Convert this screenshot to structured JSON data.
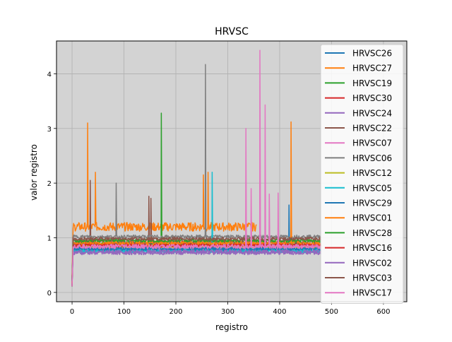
{
  "chart_data": {
    "type": "line",
    "title": "HRVSC",
    "xlabel": "registro",
    "ylabel": "valor registro",
    "xlim": [
      -30,
      645
    ],
    "ylim": [
      -0.17,
      4.6
    ],
    "xticks": [
      0,
      100,
      200,
      300,
      400,
      500,
      600
    ],
    "yticks": [
      0,
      1,
      2,
      3,
      4
    ],
    "grid": true,
    "background": "#d3d3d3",
    "legend_position": "right",
    "series": [
      {
        "name": "HRVSC26",
        "color": "#1f77b4",
        "x_end": 480,
        "base": 0.78,
        "noise": 0.04,
        "spikes": [
          [
            418,
            1.6
          ]
        ]
      },
      {
        "name": "HRVSC27",
        "color": "#ff7f0e",
        "x_end": 355,
        "base": 1.2,
        "noise": 0.08,
        "spikes": [
          [
            30,
            3.1
          ],
          [
            45,
            2.2
          ],
          [
            253,
            2.15
          ],
          [
            262,
            2.2
          ]
        ]
      },
      {
        "name": "HRVSC19",
        "color": "#2ca02c",
        "x_end": 480,
        "base": 0.88,
        "noise": 0.04,
        "spikes": [
          [
            172,
            3.28
          ]
        ]
      },
      {
        "name": "HRVSC30",
        "color": "#d62728",
        "x_end": 480,
        "base": 0.85,
        "noise": 0.03,
        "spikes": []
      },
      {
        "name": "HRVSC24",
        "color": "#9467bd",
        "x_end": 480,
        "base": 0.73,
        "noise": 0.04,
        "spikes": []
      },
      {
        "name": "HRVSC22",
        "color": "#8c564b",
        "x_end": 480,
        "base": 0.92,
        "noise": 0.04,
        "spikes": [
          [
            35,
            2.05
          ],
          [
            148,
            1.76
          ],
          [
            152,
            1.72
          ]
        ]
      },
      {
        "name": "HRVSC07",
        "color": "#e377c2",
        "x_end": 480,
        "base": 0.82,
        "noise": 0.04,
        "spikes": []
      },
      {
        "name": "HRVSC06",
        "color": "#7f7f7f",
        "x_end": 480,
        "base": 1.02,
        "noise": 0.03,
        "spikes": [
          [
            85,
            2.0
          ],
          [
            257,
            4.17
          ]
        ]
      },
      {
        "name": "HRVSC12",
        "color": "#bcbd22",
        "x_end": 480,
        "base": 0.84,
        "noise": 0.03,
        "spikes": []
      },
      {
        "name": "HRVSC05",
        "color": "#17becf",
        "x_end": 480,
        "base": 0.77,
        "noise": 0.04,
        "spikes": [
          [
            270,
            2.2
          ]
        ]
      },
      {
        "name": "HRVSC29",
        "color": "#1f77b4",
        "x_end": 480,
        "base": 0.8,
        "noise": 0.03,
        "spikes": []
      },
      {
        "name": "HRVSC01",
        "color": "#ff7f0e",
        "x_end": 480,
        "base": 0.9,
        "noise": 0.04,
        "spikes": [
          [
            422,
            3.12
          ]
        ]
      },
      {
        "name": "HRVSC28",
        "color": "#2ca02c",
        "x_end": 480,
        "base": 0.95,
        "noise": 0.03,
        "spikes": []
      },
      {
        "name": "HRVSC16",
        "color": "#d62728",
        "x_end": 480,
        "base": 0.86,
        "noise": 0.03,
        "spikes": []
      },
      {
        "name": "HRVSC02",
        "color": "#9467bd",
        "x_end": 480,
        "base": 0.74,
        "noise": 0.04,
        "spikes": []
      },
      {
        "name": "HRVSC03",
        "color": "#8c564b",
        "x_end": 480,
        "base": 0.98,
        "noise": 0.03,
        "spikes": []
      },
      {
        "name": "HRVSC17",
        "color": "#e377c2",
        "x_end": 480,
        "base": 0.84,
        "noise": 0.04,
        "spikes": [
          [
            335,
            3.0
          ],
          [
            345,
            1.9
          ],
          [
            362,
            4.43
          ],
          [
            372,
            3.43
          ],
          [
            380,
            1.8
          ],
          [
            397,
            1.82
          ]
        ]
      }
    ]
  }
}
